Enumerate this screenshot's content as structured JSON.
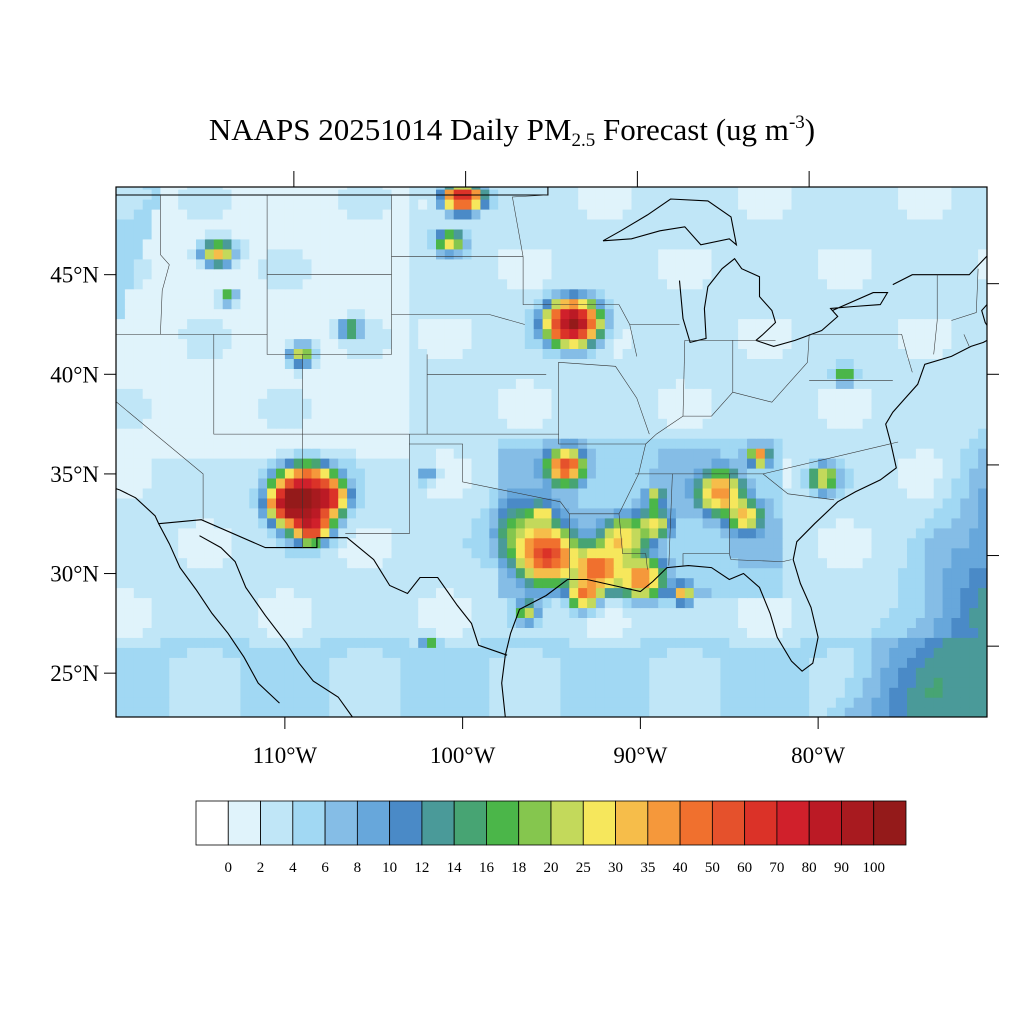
{
  "title": {
    "prefix": "NAAPS 20251014 Daily PM",
    "subscript": "2.5",
    "middle": " Forecast (ug m",
    "superscript": "-3",
    "suffix": ")"
  },
  "map": {
    "lon_range": [
      -119.5,
      -70.5
    ],
    "lat_range": [
      22.8,
      49.4
    ],
    "lat_labels": [
      "45°N",
      "40°N",
      "35°N",
      "30°N",
      "25°N"
    ],
    "lat_values": [
      45,
      40,
      35,
      30,
      25
    ],
    "lon_labels": [
      "110°W",
      "100°W",
      "90°W",
      "80°W"
    ],
    "lon_values": [
      -110,
      -100,
      -90,
      -80
    ],
    "background_value": 2,
    "plumes": [
      {
        "lon": -108.8,
        "lat": 33.9,
        "r": 1.2,
        "peak": 100
      },
      {
        "lon": -109.8,
        "lat": 33.5,
        "r": 0.7,
        "peak": 70
      },
      {
        "lon": -108.5,
        "lat": 32.4,
        "r": 0.7,
        "peak": 60
      },
      {
        "lon": -107.4,
        "lat": 33.8,
        "r": 0.6,
        "peak": 40
      },
      {
        "lon": -100.0,
        "lat": 48.9,
        "r": 0.6,
        "peak": 70
      },
      {
        "lon": -100.7,
        "lat": 46.7,
        "r": 0.5,
        "peak": 25
      },
      {
        "lon": -93.8,
        "lat": 42.6,
        "r": 0.9,
        "peak": 100
      },
      {
        "lon": -113.8,
        "lat": 46.1,
        "r": 0.6,
        "peak": 30
      },
      {
        "lon": -113.2,
        "lat": 43.9,
        "r": 0.3,
        "peak": 20
      },
      {
        "lon": -109.1,
        "lat": 41.0,
        "r": 0.5,
        "peak": 25
      },
      {
        "lon": -106.3,
        "lat": 42.3,
        "r": 0.4,
        "peak": 20
      },
      {
        "lon": -94.2,
        "lat": 35.4,
        "r": 0.7,
        "peak": 50
      },
      {
        "lon": -96.5,
        "lat": 32.0,
        "r": 1.6,
        "peak": 14
      },
      {
        "lon": -95.2,
        "lat": 30.9,
        "r": 1.1,
        "peak": 50
      },
      {
        "lon": -92.4,
        "lat": 30.2,
        "r": 1.0,
        "peak": 40
      },
      {
        "lon": -89.9,
        "lat": 29.8,
        "r": 0.9,
        "peak": 35
      },
      {
        "lon": -91.0,
        "lat": 31.8,
        "r": 0.9,
        "peak": 25
      },
      {
        "lon": -93.2,
        "lat": 28.9,
        "r": 0.6,
        "peak": 35
      },
      {
        "lon": -87.6,
        "lat": 29.0,
        "r": 0.4,
        "peak": 30
      },
      {
        "lon": -89.2,
        "lat": 32.5,
        "r": 0.7,
        "peak": 20
      },
      {
        "lon": -85.5,
        "lat": 34.1,
        "r": 0.9,
        "peak": 35
      },
      {
        "lon": -84.1,
        "lat": 32.9,
        "r": 0.7,
        "peak": 25
      },
      {
        "lon": -83.3,
        "lat": 35.9,
        "r": 0.4,
        "peak": 35
      },
      {
        "lon": -79.7,
        "lat": 34.8,
        "r": 0.6,
        "peak": 25
      },
      {
        "lon": -78.5,
        "lat": 40.0,
        "r": 0.4,
        "peak": 18
      },
      {
        "lon": -95.5,
        "lat": 33.0,
        "r": 0.4,
        "peak": 18
      },
      {
        "lon": -101.9,
        "lat": 26.5,
        "r": 0.3,
        "peak": 16
      },
      {
        "lon": -89.2,
        "lat": 33.9,
        "r": 0.4,
        "peak": 18
      },
      {
        "lon": -96.4,
        "lat": 28.1,
        "r": 0.5,
        "peak": 20
      },
      {
        "lon": -102.0,
        "lat": 35.0,
        "r": 0.4,
        "peak": 10
      }
    ]
  },
  "colorbar": {
    "labels": [
      "0",
      "2",
      "4",
      "6",
      "8",
      "10",
      "12",
      "14",
      "16",
      "18",
      "20",
      "25",
      "30",
      "35",
      "40",
      "50",
      "60",
      "70",
      "80",
      "90",
      "100"
    ],
    "colors": [
      "#ffffff",
      "#e0f3fb",
      "#c0e6f7",
      "#a1d8f3",
      "#85bde6",
      "#67a7db",
      "#4a8ac7",
      "#4a9a99",
      "#47a473",
      "#4bb649",
      "#85c64e",
      "#c3d95b",
      "#f6e75c",
      "#f6bd4a",
      "#f5983b",
      "#f0702e",
      "#e5512c",
      "#db3228",
      "#d0202b",
      "#bb1a25",
      "#a81a1f",
      "#941a1a"
    ]
  }
}
